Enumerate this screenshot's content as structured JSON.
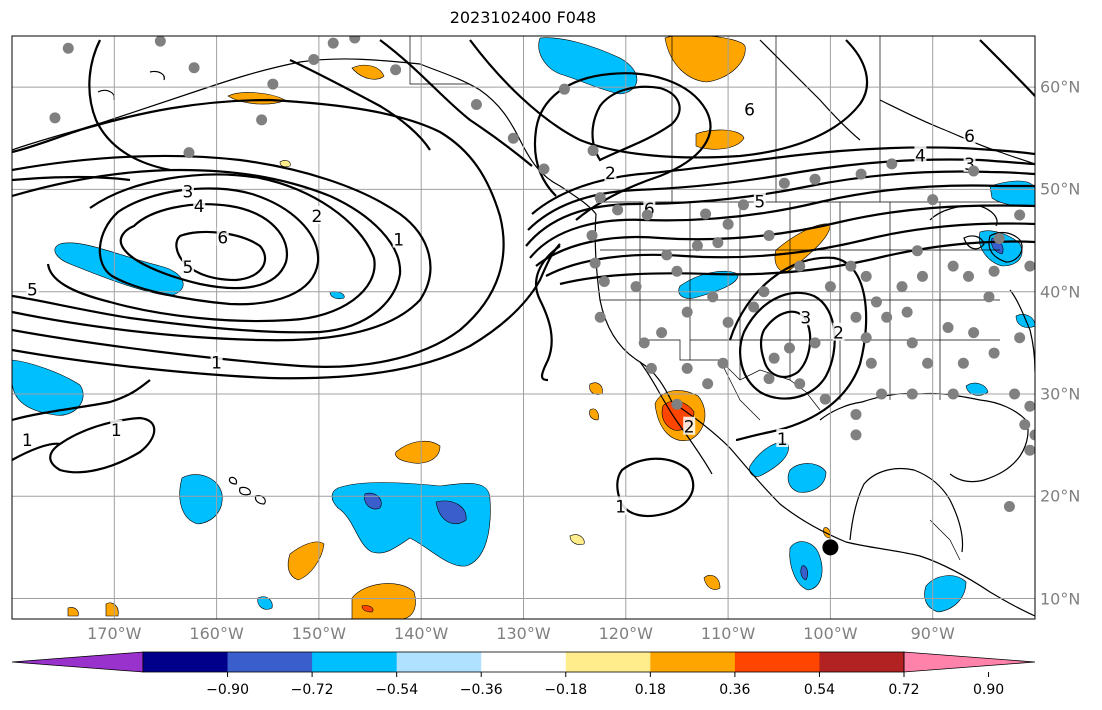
{
  "title": "2023102400 F048",
  "map": {
    "projection": "plate-carree",
    "extent": {
      "lon": [
        -180,
        -80
      ],
      "lat": [
        8,
        65
      ]
    },
    "longitude_labels": [
      "170°W",
      "160°W",
      "150°W",
      "140°W",
      "130°W",
      "120°W",
      "110°W",
      "100°W",
      "90°W"
    ],
    "latitude_labels": [
      "60°N",
      "50°N",
      "40°N",
      "30°N",
      "20°N",
      "10°N"
    ],
    "gridlines": true,
    "gridline_color": "#a0a0a0",
    "coastline_color": "#000000",
    "contour_field": "black line contours",
    "contour_labels": [
      {
        "text": "3",
        "lon": -162.8,
        "lat": 49.8
      },
      {
        "text": "4",
        "lon": -161.7,
        "lat": 48.4
      },
      {
        "text": "2",
        "lon": -150.2,
        "lat": 47.4
      },
      {
        "text": "1",
        "lon": -142.2,
        "lat": 45.1
      },
      {
        "text": "6",
        "lon": -159.4,
        "lat": 45.3
      },
      {
        "text": "5",
        "lon": -162.8,
        "lat": 42.4
      },
      {
        "text": "5",
        "lon": -178.0,
        "lat": 40.2
      },
      {
        "text": "1",
        "lon": -160.0,
        "lat": 33.1
      },
      {
        "text": "1",
        "lon": -178.5,
        "lat": 25.5
      },
      {
        "text": "1",
        "lon": -169.8,
        "lat": 26.5
      },
      {
        "text": "2",
        "lon": -121.5,
        "lat": 51.6
      },
      {
        "text": "6",
        "lon": -117.7,
        "lat": 48.1
      },
      {
        "text": "6",
        "lon": -107.9,
        "lat": 57.8
      },
      {
        "text": "5",
        "lon": -106.9,
        "lat": 48.8
      },
      {
        "text": "6",
        "lon": -86.4,
        "lat": 55.2
      },
      {
        "text": "4",
        "lon": -91.2,
        "lat": 53.3
      },
      {
        "text": "3",
        "lon": -86.4,
        "lat": 52.5
      },
      {
        "text": "3",
        "lon": -102.4,
        "lat": 37.5
      },
      {
        "text": "2",
        "lon": -99.2,
        "lat": 36.0
      },
      {
        "text": "1",
        "lon": -104.7,
        "lat": 25.6
      },
      {
        "text": "1",
        "lon": -120.5,
        "lat": 19.0
      },
      {
        "text": "2",
        "lon": -113.8,
        "lat": 26.8
      }
    ],
    "station_color": "#808080",
    "station_marker": "filled circle",
    "highlight_marker": {
      "lon": -100.0,
      "lat": 15.0,
      "color": "#000000"
    }
  },
  "colorbar": {
    "colors": [
      "#9932cc",
      "#00008b",
      "#3a5fcd",
      "#00bfff",
      "#b0e2ff",
      "#ffffff",
      "#ffec8b",
      "#ffa500",
      "#ff4500",
      "#b22222",
      "#ff82ab"
    ],
    "ticks": [
      "−0.90",
      "−0.72",
      "−0.54",
      "−0.36",
      "−0.18",
      "0.18",
      "0.36",
      "0.54",
      "0.72",
      "0.90"
    ],
    "extend": "both"
  }
}
